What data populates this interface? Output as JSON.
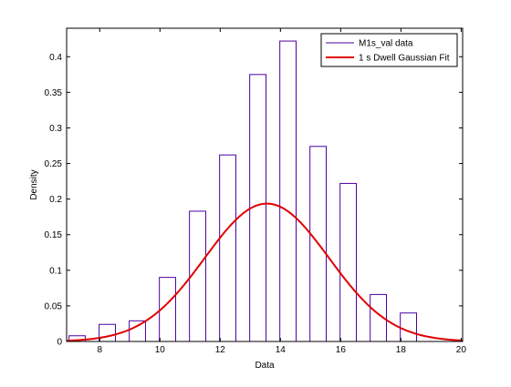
{
  "figure": {
    "background": "#ffffff"
  },
  "chart_data": {
    "type": "bar",
    "title": "",
    "xlabel": "Data",
    "ylabel": "Density",
    "xlim": [
      6.9,
      20.05
    ],
    "ylim": [
      0,
      0.44
    ],
    "xticks": [
      8,
      10,
      12,
      14,
      16,
      18,
      20
    ],
    "yticks": [
      0,
      0.05,
      0.1,
      0.15,
      0.2,
      0.25,
      0.3,
      0.35,
      0.4
    ],
    "ytick_labels": [
      "0",
      "0.05",
      "0.1",
      "0.15",
      "0.2",
      "0.25",
      "0.3",
      "0.35",
      "0.4"
    ],
    "grid": false,
    "legend_location": "top-right",
    "bin_width": 0.54,
    "histogram": {
      "name": "M1s_val data",
      "color": "#4b00a3",
      "bins": [
        {
          "x": 7.25,
          "value": 0.008
        },
        {
          "x": 8.25,
          "value": 0.024
        },
        {
          "x": 9.25,
          "value": 0.029
        },
        {
          "x": 10.25,
          "value": 0.09
        },
        {
          "x": 11.25,
          "value": 0.183
        },
        {
          "x": 12.25,
          "value": 0.262
        },
        {
          "x": 13.25,
          "value": 0.375
        },
        {
          "x": 14.25,
          "value": 0.422
        },
        {
          "x": 15.25,
          "value": 0.274
        },
        {
          "x": 16.25,
          "value": 0.222
        },
        {
          "x": 17.25,
          "value": 0.066
        },
        {
          "x": 18.25,
          "value": 0.04
        },
        {
          "x": 19.25,
          "value": 0.0
        }
      ]
    },
    "fit": {
      "name": "1 s Dwell Gaussian Fit",
      "color": "#e00000",
      "distribution": "normal",
      "mean": 13.55,
      "sigma": 2.06
    }
  }
}
